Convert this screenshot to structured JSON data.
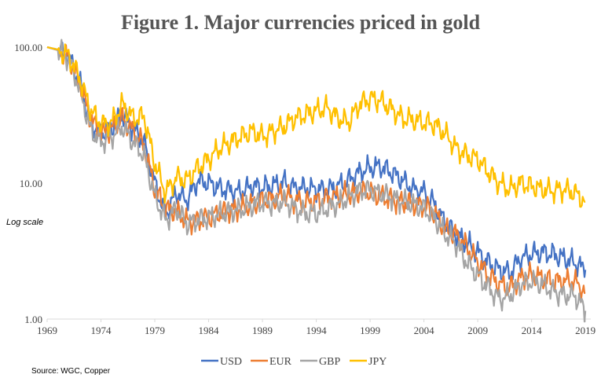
{
  "colors": {
    "USD": "#4472C4",
    "EUR": "#ED7D31",
    "GBP": "#A5A5A5",
    "JPY": "#FFC000",
    "axis": "#d9d9d9"
  },
  "chart_data": {
    "type": "line",
    "title": "Figure 1.  Major currencies priced in gold",
    "scale_note": "Log scale",
    "source": "Source: WGC,  Copper",
    "y_scale": "log",
    "ylim": [
      1,
      100
    ],
    "xlim": [
      1969,
      2019.5
    ],
    "y_tick_labels": [
      "100.00",
      "10.00",
      "1.00"
    ],
    "y_tick_values": [
      100,
      10,
      1
    ],
    "x_tick_labels": [
      "1969",
      "1974",
      "1979",
      "1984",
      "1989",
      "1994",
      "1999",
      "2004",
      "2009",
      "2014",
      "2019"
    ],
    "x_tick_values": [
      1969,
      1974,
      1979,
      1984,
      1989,
      1994,
      1999,
      2004,
      2009,
      2014,
      2019
    ],
    "grid": false,
    "legend": "bottom",
    "series": [
      {
        "name": "USD",
        "x": [
          1969,
          1970,
          1971,
          1972,
          1973,
          1974,
          1975,
          1976,
          1977,
          1978,
          1979,
          1980,
          1981,
          1982,
          1983,
          1984,
          1985,
          1986,
          1987,
          1988,
          1989,
          1990,
          1991,
          1992,
          1993,
          1994,
          1995,
          1996,
          1997,
          1998,
          1999,
          2000,
          2001,
          2002,
          2003,
          2004,
          2005,
          2006,
          2007,
          2008,
          2009,
          2010,
          2011,
          2012,
          2013,
          2014,
          2015,
          2016,
          2017,
          2018,
          2019
        ],
        "values": [
          100,
          96,
          85,
          55,
          28,
          23,
          26,
          32,
          25,
          20,
          10,
          5.8,
          8.5,
          7.5,
          10.5,
          10,
          9.2,
          8.8,
          8.6,
          9.5,
          9.3,
          9.6,
          10.2,
          9.2,
          9.2,
          9.0,
          8.9,
          9.5,
          10.5,
          12,
          13,
          13.2,
          12,
          10.5,
          9,
          8.6,
          7,
          5.0,
          4.2,
          3.6,
          3.1,
          2.6,
          2.3,
          2.2,
          2.8,
          3.0,
          3.1,
          3.0,
          2.8,
          2.6,
          2.3
        ]
      },
      {
        "name": "EUR",
        "x": [
          1969,
          1970,
          1971,
          1972,
          1973,
          1974,
          1975,
          1976,
          1977,
          1978,
          1979,
          1980,
          1981,
          1982,
          1983,
          1984,
          1985,
          1986,
          1987,
          1988,
          1989,
          1990,
          1991,
          1992,
          1993,
          1994,
          1995,
          1996,
          1997,
          1998,
          1999,
          2000,
          2001,
          2002,
          2003,
          2004,
          2005,
          2006,
          2007,
          2008,
          2009,
          2010,
          2011,
          2012,
          2013,
          2014,
          2015,
          2016,
          2017,
          2018,
          2019
        ],
        "values": [
          100,
          95,
          85,
          55,
          30,
          23,
          25,
          30,
          24,
          19,
          9,
          6.5,
          6.2,
          5.2,
          5.3,
          5.6,
          6.0,
          6.3,
          6.5,
          7.0,
          7.4,
          7.6,
          8.2,
          7.5,
          7.2,
          7.4,
          7.8,
          8.0,
          8.3,
          8.7,
          8.5,
          8.0,
          7.6,
          7.2,
          7.0,
          6.8,
          6.0,
          4.5,
          4.2,
          3.4,
          2.6,
          2.1,
          1.8,
          1.7,
          2.0,
          2.1,
          2.0,
          1.9,
          1.9,
          1.9,
          1.55
        ]
      },
      {
        "name": "GBP",
        "x": [
          1969,
          1970,
          1971,
          1972,
          1973,
          1974,
          1975,
          1976,
          1977,
          1978,
          1979,
          1980,
          1981,
          1982,
          1983,
          1984,
          1985,
          1986,
          1987,
          1988,
          1989,
          1990,
          1991,
          1992,
          1993,
          1994,
          1995,
          1996,
          1997,
          1998,
          1999,
          2000,
          2001,
          2002,
          2003,
          2004,
          2005,
          2006,
          2007,
          2008,
          2009,
          2010,
          2011,
          2012,
          2013,
          2014,
          2015,
          2016,
          2017,
          2018,
          2019
        ],
        "values": [
          100,
          95,
          82,
          50,
          25,
          20,
          22,
          26,
          20,
          16,
          8,
          5.3,
          6.5,
          5.0,
          5.4,
          5.6,
          5.9,
          6.2,
          6.4,
          6.8,
          7.2,
          7.0,
          7.3,
          6.5,
          6.0,
          6.0,
          6.5,
          7.0,
          7.8,
          8.8,
          8.9,
          8.4,
          7.8,
          7.3,
          7.0,
          6.5,
          5.5,
          4.2,
          3.6,
          2.6,
          2.1,
          1.7,
          1.4,
          1.5,
          1.8,
          1.9,
          1.8,
          1.6,
          1.5,
          1.5,
          1.15
        ]
      },
      {
        "name": "JPY",
        "x": [
          1969,
          1970,
          1971,
          1972,
          1973,
          1974,
          1975,
          1976,
          1977,
          1978,
          1979,
          1980,
          1981,
          1982,
          1983,
          1984,
          1985,
          1986,
          1987,
          1988,
          1989,
          1990,
          1991,
          1992,
          1993,
          1994,
          1995,
          1996,
          1997,
          1998,
          1999,
          2000,
          2001,
          2002,
          2003,
          2004,
          2005,
          2006,
          2007,
          2008,
          2009,
          2010,
          2011,
          2012,
          2013,
          2014,
          2015,
          2016,
          2017,
          2018,
          2019
        ],
        "values": [
          100,
          96,
          86,
          60,
          35,
          27,
          28,
          38,
          30,
          31,
          14,
          8.5,
          11,
          10.5,
          13,
          15,
          18,
          20,
          22,
          24,
          22,
          24,
          26,
          30,
          32,
          34,
          36,
          30,
          28,
          38,
          42,
          40,
          35,
          30,
          29,
          28,
          27,
          23,
          18,
          16,
          15,
          12,
          10,
          9,
          10,
          9.5,
          9.0,
          8.8,
          9.0,
          8.5,
          7.3
        ]
      }
    ]
  }
}
